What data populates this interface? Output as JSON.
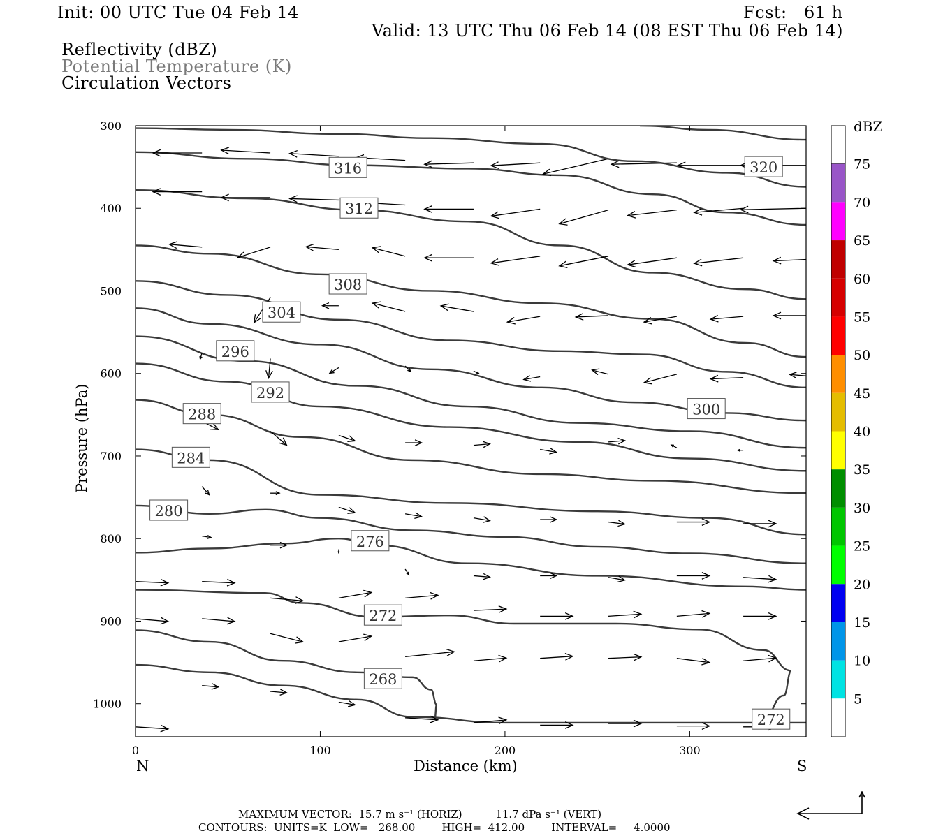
{
  "header": {
    "init": "Init: 00 UTC Tue 04 Feb 14",
    "fcst": "Fcst:   61 h",
    "valid": "Valid: 13 UTC Thu 06 Feb 14 (08 EST Thu 06 Feb 14)",
    "fields": [
      "Reflectivity (dBZ)",
      "Potential Temperature (K)",
      "Circulation Vectors"
    ]
  },
  "footer": {
    "max_vector": "MAXIMUM VECTOR:  15.7 m s⁻¹ (HORIZ)          11.7 dPa s⁻¹ (VERT)",
    "contours": "CONTOURS:  UNITS=K  LOW=   268.00        HIGH=  412.00        INTERVAL=     4.0000"
  },
  "colorbar": {
    "title": "dBZ",
    "levels": [
      5,
      10,
      15,
      20,
      25,
      30,
      35,
      40,
      45,
      50,
      55,
      60,
      65,
      70,
      75
    ],
    "colors": [
      "#00e3e3",
      "#0095e9",
      "#0000f1",
      "#00ff00",
      "#00c600",
      "#008e00",
      "#ffff00",
      "#e5bd00",
      "#ff8e00",
      "#ff0000",
      "#d60000",
      "#c00000",
      "#ff00ff",
      "#9955c8"
    ]
  },
  "chart_data": {
    "type": "cross-section",
    "xlabel": "Distance (km)",
    "ylabel": "Pressure (hPa)",
    "xlim": [
      0,
      363
    ],
    "ylim": [
      1040,
      300
    ],
    "x_ticks": [
      0,
      100,
      200,
      300
    ],
    "y_ticks": [
      300,
      400,
      500,
      600,
      700,
      800,
      900,
      1000
    ],
    "x_end_labels": {
      "left": "N",
      "right": "S"
    },
    "contour_interval": 4,
    "isentropes": [
      {
        "theta": 320,
        "label_at": [
          340,
          350
        ],
        "points": [
          [
            273,
            300
          ],
          [
            310,
            305
          ],
          [
            363,
            317
          ]
        ]
      },
      {
        "theta": 320,
        "label_at": null,
        "points": [
          [
            0,
            303
          ],
          [
            50,
            305
          ],
          [
            110,
            310
          ],
          [
            160,
            315
          ],
          [
            220,
            322
          ],
          [
            270,
            343
          ],
          [
            320,
            357
          ],
          [
            363,
            374
          ]
        ]
      },
      {
        "theta": 316,
        "label_at": [
          115,
          351
        ],
        "points": [
          [
            0,
            332
          ],
          [
            60,
            340
          ],
          [
            120,
            348
          ],
          [
            180,
            352
          ],
          [
            230,
            360
          ],
          [
            280,
            383
          ],
          [
            320,
            405
          ],
          [
            363,
            420
          ]
        ]
      },
      {
        "theta": 312,
        "label_at": [
          121,
          400
        ],
        "points": [
          [
            0,
            378
          ],
          [
            60,
            388
          ],
          [
            120,
            402
          ],
          [
            180,
            416
          ],
          [
            230,
            445
          ],
          [
            280,
            478
          ],
          [
            330,
            498
          ],
          [
            363,
            510
          ]
        ]
      },
      {
        "theta": 308,
        "label_at": [
          115,
          492
        ],
        "points": [
          [
            0,
            445
          ],
          [
            40,
            455
          ],
          [
            100,
            480
          ],
          [
            160,
            500
          ],
          [
            220,
            515
          ],
          [
            280,
            534
          ],
          [
            330,
            563
          ],
          [
            363,
            580
          ]
        ]
      },
      {
        "theta": 304,
        "label_at": [
          79,
          526
        ],
        "points": [
          [
            0,
            488
          ],
          [
            50,
            505
          ],
          [
            110,
            535
          ],
          [
            170,
            560
          ],
          [
            230,
            573
          ],
          [
            275,
            577
          ],
          [
            320,
            598
          ],
          [
            363,
            617
          ]
        ]
      },
      {
        "theta": 300,
        "label_at": [
          309,
          643
        ],
        "points": [
          [
            0,
            521
          ],
          [
            40,
            540
          ],
          [
            100,
            565
          ],
          [
            160,
            595
          ],
          [
            220,
            617
          ],
          [
            270,
            635
          ],
          [
            320,
            648
          ],
          [
            363,
            657
          ]
        ]
      },
      {
        "theta": 296,
        "label_at": [
          54,
          573
        ],
        "points": [
          [
            0,
            555
          ],
          [
            60,
            585
          ],
          [
            120,
            615
          ],
          [
            180,
            640
          ],
          [
            240,
            660
          ],
          [
            300,
            670
          ],
          [
            363,
            690
          ]
        ]
      },
      {
        "theta": 292,
        "label_at": [
          73,
          623
        ],
        "points": [
          [
            0,
            588
          ],
          [
            50,
            610
          ],
          [
            100,
            640
          ],
          [
            170,
            665
          ],
          [
            240,
            683
          ],
          [
            300,
            703
          ],
          [
            363,
            718
          ]
        ]
      },
      {
        "theta": 288,
        "label_at": [
          36,
          649
        ],
        "points": [
          [
            0,
            632
          ],
          [
            40,
            650
          ],
          [
            90,
            677
          ],
          [
            150,
            705
          ],
          [
            220,
            722
          ],
          [
            280,
            730
          ],
          [
            363,
            745
          ]
        ]
      },
      {
        "theta": 284,
        "label_at": [
          30,
          702
        ],
        "points": [
          [
            0,
            692
          ],
          [
            40,
            705
          ],
          [
            100,
            747
          ],
          [
            170,
            757
          ],
          [
            250,
            767
          ],
          [
            310,
            775
          ],
          [
            363,
            795
          ]
        ]
      },
      {
        "theta": 280,
        "label_at": [
          18,
          766
        ],
        "points": [
          [
            0,
            760
          ],
          [
            40,
            770
          ],
          [
            70,
            765
          ],
          [
            100,
            775
          ],
          [
            150,
            790
          ],
          [
            200,
            798
          ],
          [
            250,
            810
          ],
          [
            300,
            818
          ],
          [
            363,
            830
          ]
        ]
      },
      {
        "theta": 276,
        "label_at": [
          127,
          803
        ],
        "points": [
          [
            0,
            817
          ],
          [
            40,
            812
          ],
          [
            80,
            806
          ],
          [
            110,
            800
          ],
          [
            130,
            808
          ],
          [
            180,
            830
          ],
          [
            250,
            845
          ],
          [
            330,
            858
          ],
          [
            363,
            862
          ]
        ]
      },
      {
        "theta": 272,
        "label_at": [
          134,
          893
        ],
        "points": [
          [
            0,
            862
          ],
          [
            70,
            866
          ],
          [
            90,
            878
          ],
          [
            130,
            895
          ],
          [
            170,
            893
          ],
          [
            205,
            903
          ],
          [
            260,
            903
          ],
          [
            305,
            910
          ],
          [
            340,
            935
          ],
          [
            355,
            960
          ],
          [
            351,
            990
          ],
          [
            340,
            1017
          ]
        ]
      },
      {
        "theta": 268,
        "label_at": [
          134,
          970
        ],
        "points": [
          [
            0,
            911
          ],
          [
            40,
            925
          ],
          [
            80,
            948
          ],
          [
            120,
            962
          ],
          [
            150,
            968
          ],
          [
            160,
            983
          ],
          [
            163,
            1001
          ],
          [
            162,
            1018
          ]
        ]
      },
      {
        "theta": 272,
        "label_at": [
          344,
          1019
        ],
        "points": [
          [
            0,
            953
          ],
          [
            40,
            962
          ],
          [
            80,
            978
          ],
          [
            120,
            995
          ],
          [
            150,
            1016
          ],
          [
            200,
            1023
          ],
          [
            363,
            1023
          ]
        ]
      }
    ],
    "vectors": [
      [
        36,
        333,
        -27,
        0
      ],
      [
        73,
        333,
        -27,
        -4
      ],
      [
        110,
        337,
        -27,
        -4
      ],
      [
        146,
        342,
        -27,
        -4
      ],
      [
        183,
        345,
        -27,
        2
      ],
      [
        219,
        345,
        -27,
        4
      ],
      [
        256,
        340,
        -36,
        22
      ],
      [
        293,
        345,
        -36,
        2
      ],
      [
        329,
        348,
        -36,
        0
      ],
      [
        363,
        348,
        -36,
        0
      ],
      [
        36,
        380,
        -27,
        0
      ],
      [
        73,
        387,
        -27,
        0
      ],
      [
        110,
        390,
        -27,
        -2
      ],
      [
        146,
        396,
        -27,
        -4
      ],
      [
        183,
        401,
        -27,
        0
      ],
      [
        219,
        401,
        -27,
        10
      ],
      [
        256,
        402,
        -27,
        20
      ],
      [
        293,
        402,
        -27,
        8
      ],
      [
        329,
        400,
        -27,
        6
      ],
      [
        363,
        400,
        -36,
        2
      ],
      [
        36,
        447,
        -18,
        -4
      ],
      [
        73,
        447,
        -18,
        15
      ],
      [
        110,
        450,
        -18,
        -4
      ],
      [
        146,
        458,
        -18,
        -12
      ],
      [
        183,
        460,
        -27,
        0
      ],
      [
        219,
        458,
        -27,
        10
      ],
      [
        256,
        458,
        -27,
        14
      ],
      [
        293,
        460,
        -27,
        10
      ],
      [
        329,
        460,
        -27,
        8
      ],
      [
        363,
        462,
        -18,
        2
      ],
      [
        73,
        508,
        -9,
        36
      ],
      [
        110,
        518,
        -9,
        0
      ],
      [
        146,
        525,
        -18,
        -12
      ],
      [
        183,
        525,
        -18,
        -8
      ],
      [
        219,
        531,
        -18,
        8
      ],
      [
        256,
        530,
        -18,
        2
      ],
      [
        293,
        531,
        -18,
        8
      ],
      [
        329,
        531,
        -18,
        4
      ],
      [
        363,
        530,
        -18,
        0
      ],
      [
        36,
        575,
        -1,
        9
      ],
      [
        73,
        582,
        -1,
        28
      ],
      [
        110,
        593,
        -5,
        8
      ],
      [
        146,
        591,
        3,
        8
      ],
      [
        183,
        597,
        3,
        4
      ],
      [
        219,
        604,
        -9,
        4
      ],
      [
        256,
        601,
        -9,
        -6
      ],
      [
        293,
        601,
        -18,
        12
      ],
      [
        329,
        605,
        -18,
        2
      ],
      [
        363,
        603,
        -9,
        -2
      ],
      [
        36,
        658,
        9,
        12
      ],
      [
        73,
        670,
        9,
        20
      ],
      [
        110,
        675,
        9,
        8
      ],
      [
        146,
        684,
        9,
        0
      ],
      [
        183,
        687,
        9,
        -2
      ],
      [
        219,
        692,
        9,
        4
      ],
      [
        256,
        683,
        9,
        -2
      ],
      [
        293,
        690,
        -3,
        -4
      ],
      [
        329,
        693,
        -3,
        0
      ],
      [
        36,
        737,
        4,
        12
      ],
      [
        73,
        745,
        5,
        0
      ],
      [
        110,
        762,
        9,
        8
      ],
      [
        146,
        770,
        9,
        4
      ],
      [
        183,
        775,
        9,
        4
      ],
      [
        219,
        777,
        9,
        0
      ],
      [
        256,
        780,
        9,
        3
      ],
      [
        293,
        780,
        18,
        0
      ],
      [
        329,
        782,
        18,
        0
      ],
      [
        36,
        797,
        5,
        2
      ],
      [
        73,
        808,
        9,
        0
      ],
      [
        110,
        813,
        0,
        5
      ],
      [
        146,
        837,
        2,
        8
      ],
      [
        183,
        845,
        9,
        2
      ],
      [
        219,
        845,
        9,
        0
      ],
      [
        256,
        847,
        9,
        4
      ],
      [
        293,
        845,
        18,
        0
      ],
      [
        329,
        847,
        18,
        3
      ],
      [
        0,
        852,
        18,
        2
      ],
      [
        36,
        852,
        18,
        2
      ],
      [
        73,
        872,
        18,
        4
      ],
      [
        110,
        872,
        18,
        -8
      ],
      [
        146,
        872,
        18,
        -4
      ],
      [
        183,
        887,
        18,
        -2
      ],
      [
        219,
        894,
        18,
        0
      ],
      [
        256,
        894,
        18,
        -3
      ],
      [
        293,
        894,
        18,
        -4
      ],
      [
        329,
        894,
        18,
        0
      ],
      [
        0,
        897,
        18,
        4
      ],
      [
        36,
        897,
        18,
        4
      ],
      [
        73,
        915,
        18,
        12
      ],
      [
        110,
        925,
        18,
        -8
      ],
      [
        146,
        943,
        27,
        -7
      ],
      [
        183,
        948,
        18,
        -4
      ],
      [
        219,
        945,
        18,
        -3
      ],
      [
        256,
        945,
        18,
        -2
      ],
      [
        293,
        945,
        18,
        6
      ],
      [
        329,
        948,
        18,
        -4
      ],
      [
        0,
        1028,
        18,
        3
      ],
      [
        36,
        978,
        9,
        2
      ],
      [
        73,
        985,
        9,
        2
      ],
      [
        110,
        998,
        9,
        4
      ],
      [
        146,
        1017,
        18,
        3
      ],
      [
        183,
        1023,
        18,
        -4
      ],
      [
        219,
        1026,
        18,
        0
      ],
      [
        256,
        1024,
        18,
        0
      ],
      [
        293,
        1027,
        18,
        0
      ],
      [
        329,
        1028,
        18,
        0
      ]
    ]
  }
}
